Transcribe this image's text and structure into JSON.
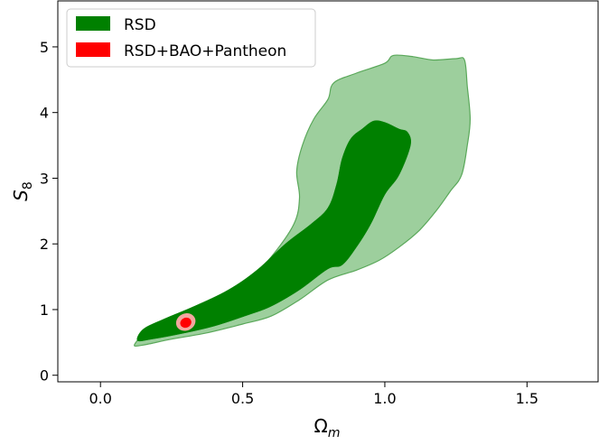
{
  "chart_data": {
    "type": "contour",
    "xlabel": "Ωm",
    "ylabel": "S8",
    "xlim": [
      -0.15,
      1.75
    ],
    "ylim": [
      -0.1,
      5.7
    ],
    "xticks": [
      0.0,
      0.5,
      1.0,
      1.5
    ],
    "xtick_labels": [
      "0.0",
      "0.5",
      "1.0",
      "1.5"
    ],
    "yticks": [
      0,
      1,
      2,
      3,
      4,
      5
    ],
    "ytick_labels": [
      "0",
      "1",
      "2",
      "3",
      "4",
      "5"
    ],
    "legend": {
      "placement": "top-left",
      "entries": [
        "RSD",
        "RSD+BAO+Pantheon"
      ]
    },
    "series": [
      {
        "name": "RSD",
        "inner_color": "#008000",
        "outer_color": "#9dcf9d",
        "outer_edge": "#5aa85a",
        "contours": [
          {
            "level": "outer",
            "points": [
              [
                0.12,
                0.47
              ],
              [
                0.15,
                0.46
              ],
              [
                0.25,
                0.55
              ],
              [
                0.38,
                0.65
              ],
              [
                0.5,
                0.78
              ],
              [
                0.6,
                0.9
              ],
              [
                0.7,
                1.15
              ],
              [
                0.8,
                1.45
              ],
              [
                0.9,
                1.6
              ],
              [
                0.98,
                1.75
              ],
              [
                1.05,
                1.95
              ],
              [
                1.12,
                2.2
              ],
              [
                1.18,
                2.5
              ],
              [
                1.23,
                2.8
              ],
              [
                1.27,
                3.05
              ],
              [
                1.29,
                3.5
              ],
              [
                1.3,
                3.9
              ],
              [
                1.29,
                4.4
              ],
              [
                1.28,
                4.8
              ],
              [
                1.25,
                4.82
              ],
              [
                1.17,
                4.8
              ],
              [
                1.1,
                4.85
              ],
              [
                1.03,
                4.87
              ],
              [
                1.0,
                4.75
              ],
              [
                0.9,
                4.6
              ],
              [
                0.82,
                4.45
              ],
              [
                0.8,
                4.2
              ],
              [
                0.75,
                3.9
              ],
              [
                0.71,
                3.5
              ],
              [
                0.69,
                3.1
              ],
              [
                0.7,
                2.7
              ],
              [
                0.68,
                2.3
              ],
              [
                0.6,
                1.8
              ],
              [
                0.52,
                1.45
              ],
              [
                0.42,
                1.15
              ],
              [
                0.3,
                0.95
              ],
              [
                0.18,
                0.72
              ]
            ]
          },
          {
            "level": "inner",
            "points": [
              [
                0.13,
                0.53
              ],
              [
                0.18,
                0.55
              ],
              [
                0.28,
                0.63
              ],
              [
                0.4,
                0.75
              ],
              [
                0.52,
                0.92
              ],
              [
                0.6,
                1.05
              ],
              [
                0.7,
                1.3
              ],
              [
                0.8,
                1.62
              ],
              [
                0.85,
                1.68
              ],
              [
                0.9,
                1.95
              ],
              [
                0.95,
                2.3
              ],
              [
                1.0,
                2.75
              ],
              [
                1.05,
                3.05
              ],
              [
                1.09,
                3.5
              ],
              [
                1.08,
                3.7
              ],
              [
                1.05,
                3.75
              ],
              [
                1.0,
                3.85
              ],
              [
                0.96,
                3.87
              ],
              [
                0.92,
                3.75
              ],
              [
                0.88,
                3.6
              ],
              [
                0.85,
                3.3
              ],
              [
                0.83,
                2.9
              ],
              [
                0.8,
                2.55
              ],
              [
                0.74,
                2.3
              ],
              [
                0.65,
                2.0
              ],
              [
                0.55,
                1.6
              ],
              [
                0.45,
                1.3
              ],
              [
                0.33,
                1.05
              ],
              [
                0.22,
                0.85
              ],
              [
                0.15,
                0.7
              ]
            ]
          }
        ]
      },
      {
        "name": "RSD+BAO+Pantheon",
        "inner_color": "#ff0000",
        "outer_color": "#f2a79e",
        "contours": [
          {
            "level": "outer",
            "center": [
              0.3,
              0.81
            ],
            "radius_x": 0.035,
            "radius_y": 0.13
          },
          {
            "level": "inner",
            "center": [
              0.3,
              0.8
            ],
            "radius_x": 0.02,
            "radius_y": 0.075
          }
        ]
      }
    ]
  }
}
